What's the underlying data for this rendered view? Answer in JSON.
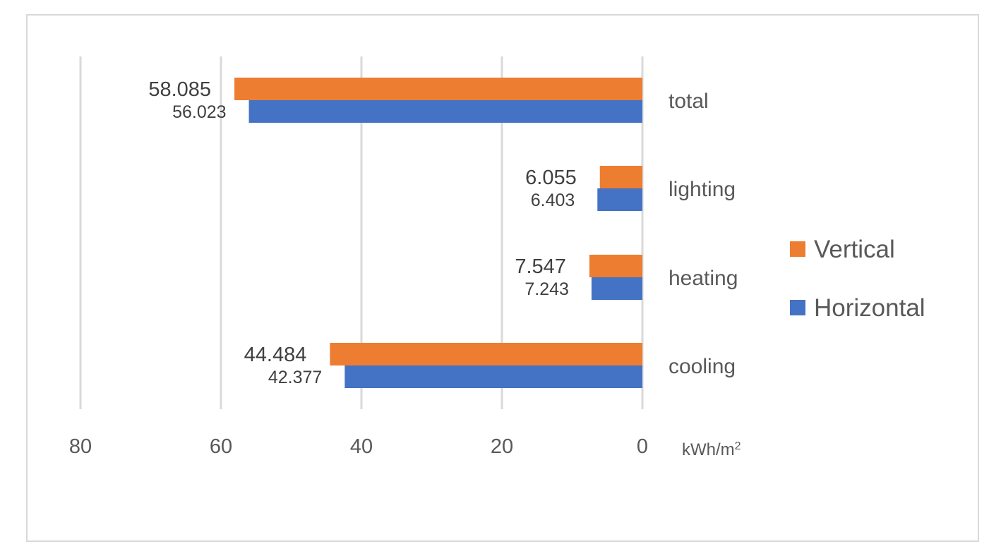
{
  "chart_data": {
    "type": "bar",
    "orientation": "horizontal",
    "x_reversed": true,
    "categories": [
      "total",
      "lighting",
      "heating",
      "cooling"
    ],
    "series": [
      {
        "name": "Vertical",
        "color": "#ed7d31",
        "values": [
          58.085,
          6.055,
          7.547,
          44.484
        ]
      },
      {
        "name": "Horizontal",
        "color": "#4472c4",
        "values": [
          56.023,
          6.403,
          7.243,
          42.377
        ]
      }
    ],
    "data_labels": {
      "Vertical": [
        "58.085",
        "6.055",
        "7.547",
        "44.484"
      ],
      "Horizontal": [
        "56.023",
        "6.403",
        "7.243",
        "42.377"
      ]
    },
    "xlim": [
      0,
      80
    ],
    "x_ticks": [
      "80",
      "60",
      "40",
      "20",
      "0"
    ],
    "xlabel": "kWh/m",
    "xlabel_superscript": "2",
    "grid": true,
    "legend_position": "right"
  }
}
